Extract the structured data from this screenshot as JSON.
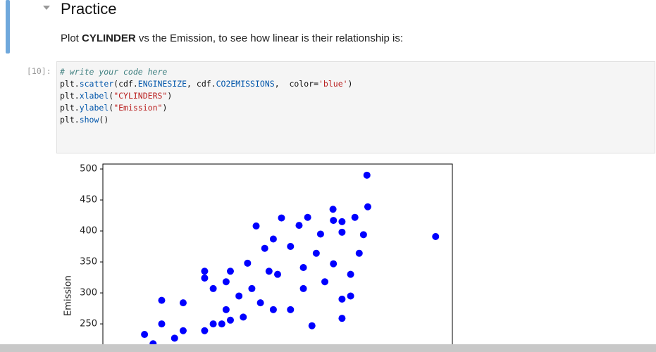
{
  "heading": "Practice",
  "paragraph": [
    "Plot ",
    "CYLINDER",
    " vs the Emission, to see how linear is their relationship is:"
  ],
  "prompt": "[10]:",
  "code": [
    [
      "# write your code here"
    ],
    [
      "plt.",
      "scatter",
      "(cdf.",
      "ENGINESIZE",
      ", cdf.",
      "CO2EMISSIONS",
      ",  color=",
      "'blue'",
      ")"
    ],
    [
      "plt.",
      "xlabel",
      "(",
      "\"CYLINDERS\"",
      ")"
    ],
    [
      "plt.",
      "ylabel",
      "(",
      "\"Emission\"",
      ")"
    ],
    [
      "plt.",
      "show",
      "()"
    ]
  ],
  "chart_data": {
    "type": "scatter",
    "ylabel": "Emission",
    "color": "blue",
    "xlim": [
      0.63,
      8.77
    ],
    "ylim": [
      216,
      508
    ],
    "yticks": [
      250,
      300,
      350,
      400,
      450,
      500
    ],
    "x": [
      6.78,
      6.8,
      8.38,
      6.5,
      5.99,
      6.0,
      5.4,
      4.79,
      4.2,
      6.7,
      6.2,
      6.2,
      5.7,
      5.2,
      4.6,
      4.4,
      4.0,
      3.6,
      3.0,
      3.0,
      3.5,
      3.2,
      2.5,
      2.0,
      2.0,
      1.6,
      1.8,
      5.5,
      6.2,
      6.6,
      6.0,
      5.3,
      4.7,
      4.1,
      3.8,
      3.5,
      3.6,
      3.2,
      3.0,
      2.5,
      2.3,
      5.0,
      5.6,
      6.4,
      4.6,
      5.0,
      4.3,
      3.9,
      3.4,
      4.5,
      5.3,
      5.8,
      6.4,
      6.2
    ],
    "values": [
      490,
      439,
      391,
      422,
      435,
      417,
      422,
      421,
      408,
      394,
      415,
      398,
      395,
      409,
      387,
      372,
      348,
      335,
      335,
      324,
      318,
      307,
      284,
      288,
      250,
      233,
      218,
      247,
      259,
      364,
      347,
      341,
      330,
      307,
      295,
      273,
      256,
      250,
      239,
      239,
      227,
      375,
      364,
      330,
      273,
      273,
      284,
      261,
      250,
      335,
      307,
      318,
      295,
      290
    ]
  }
}
